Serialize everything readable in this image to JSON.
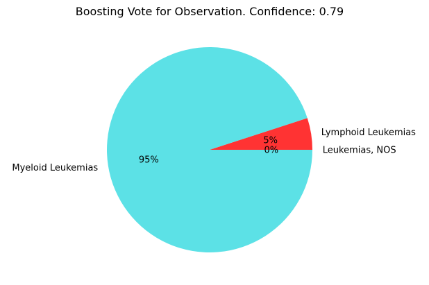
{
  "chart_data": {
    "type": "pie",
    "title": "Boosting Vote for Observation. Confidence: 0.79",
    "slices": [
      {
        "label": "Leukemias, NOS",
        "value": 0,
        "pct_label": "0%",
        "color": "#5ce1e6"
      },
      {
        "label": "Lymphoid Leukemias",
        "value": 5,
        "pct_label": "5%",
        "color": "#ff3333"
      },
      {
        "label": "Myeloid Leukemias",
        "value": 95,
        "pct_label": "95%",
        "color": "#5ce1e6"
      }
    ],
    "start_angle_deg": 0,
    "direction": "counterclockwise",
    "legend": "none"
  }
}
